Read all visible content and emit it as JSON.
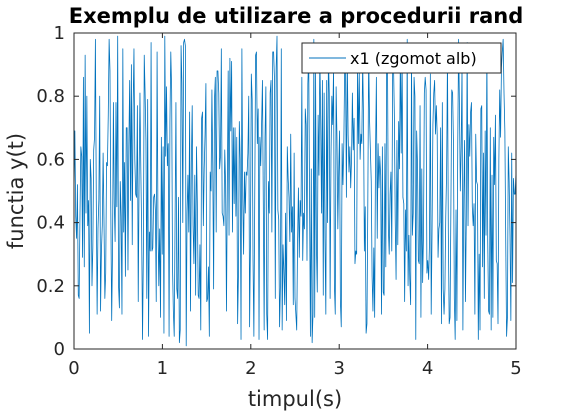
{
  "chart_data": {
    "type": "line",
    "title": "Exemplu de utilizare a procedurii rand",
    "xlabel": "timpul(s)",
    "ylabel": "functia y(t)",
    "xlim": [
      0,
      5
    ],
    "ylim": [
      0,
      1
    ],
    "xticks": [
      "0",
      "1",
      "2",
      "3",
      "4",
      "5"
    ],
    "yticks": [
      "0",
      "0.2",
      "0.4",
      "0.6",
      "0.8",
      "1"
    ],
    "grid": false,
    "legend_position": "top-right",
    "colors": {
      "series": "#0072BD",
      "axes": "#262626",
      "background": "#ffffff"
    },
    "series": [
      {
        "name": "x1 (zgomot alb)",
        "x_start": 0,
        "x_end": 5,
        "values": [
          0.5,
          0.69,
          0.42,
          0.35,
          0.52,
          0.17,
          0.16,
          0.43,
          0.64,
          0.61,
          0.29,
          0.86,
          0.26,
          0.93,
          0.43,
          0.8,
          0.39,
          0.47,
          0.05,
          0.6,
          0.54,
          0.2,
          0.32,
          0.63,
          0.67,
          0.98,
          0.48,
          0.11,
          0.38,
          0.47,
          0.8,
          0.12,
          0.31,
          0.39,
          0.62,
          0.41,
          0.16,
          0.24,
          0.59,
          0.58,
          0.74,
          0.98,
          0.88,
          0.43,
          0.09,
          0.32,
          0.78,
          0.46,
          0.34,
          0.78,
          0.45,
          0.99,
          0.2,
          0.13,
          0.53,
          0.42,
          0.11,
          0.95,
          0.37,
          0.59,
          0.23,
          0.7,
          0.7,
          0.25,
          0.64,
          0.85,
          0.47,
          0.9,
          0.33,
          0.76,
          0.95,
          0.6,
          0.49,
          0.48,
          0.77,
          0.15,
          0.54,
          0.81,
          0.57,
          0.37,
          0.03,
          0.31,
          0.93,
          0.81,
          0.66,
          0.16,
          0.79,
          0.04,
          0.37,
          0.31,
          0.97,
          0.31,
          0.32,
          0.48,
          0.49,
          0.44,
          0.15,
          0.94,
          0.41,
          0.2,
          0.38,
          0.1,
          0.67,
          0.3,
          0.64,
          0.05,
          0.99,
          0.61,
          0.83,
          0.58,
          0.65,
          0.04,
          0.72,
          0.94,
          0.82,
          0.26,
          0.12,
          0.04,
          0.41,
          0.78,
          0.19,
          0.16,
          0.48,
          0.02,
          0.06,
          0.96,
          0.84,
          0.4,
          0.97,
          0.98,
          0.96,
          0.01,
          0.43,
          0.55,
          0.37,
          0.75,
          0.12,
          0.59,
          0.77,
          0.39,
          0.27,
          0.55,
          0.17,
          0.64,
          0.46,
          0.17,
          0.16,
          0.33,
          0.06,
          0.73,
          0.75,
          0.39,
          0.57,
          0.68,
          0.84,
          0.15,
          0.16,
          0.26,
          0.04,
          0.56,
          0.5,
          0.82,
          0.58,
          0.19,
          0.79,
          0.86,
          0.37,
          0.88,
          0.88,
          0.81,
          0.57,
          0.61,
          0.95,
          0.43,
          0.42,
          0.39,
          0.63,
          0.52,
          0.12,
          0.52,
          0.88,
          0.36,
          0.92,
          0.69,
          0.91,
          0.37,
          0.7,
          0.46,
          0.7,
          0.42,
          0.67,
          0.08,
          0.24,
          0.72,
          0.6,
          0.03,
          0.95,
          0.48,
          0.3,
          0.56,
          0.43,
          0.56,
          0.55,
          0.62,
          0.8,
          0.07,
          0.34,
          0.87,
          0.79,
          0.28,
          0.04,
          0.48,
          0.93,
          0.94,
          0.65,
          0.76,
          0.03,
          0.67,
          0.58,
          0.71,
          0.85,
          0.46,
          0.06,
          0.67,
          0.83,
          0.11,
          0.03,
          0.53,
          0.43,
          0.81,
          0.85,
          0.37,
          0.94,
          0.94,
          0.86,
          0.16,
          0.89,
          0.99,
          0.44,
          0.41,
          0.07,
          0.2,
          0.95,
          0.06,
          0.33,
          0.25,
          0.14,
          0.43,
          0.09,
          0.64,
          0.54,
          0.48,
          0.34,
          0.68,
          0.37,
          0.45,
          0.14,
          0.62,
          0.16,
          0.11,
          0.06,
          0.34,
          0.51,
          0.29,
          0.47,
          0.42,
          0.86,
          0.28,
          0.43,
          0.38,
          0.76,
          0.71,
          0.28,
          0.84,
          0.93,
          0.47,
          0.04,
          0.57,
          0.02,
          0.11,
          0.98,
          0.1,
          0.88,
          0.33,
          0.18,
          0.74,
          0.55,
          0.94,
          0.72,
          0.43,
          0.85,
          0.17,
          0.81,
          0.35,
          0.11,
          0.85,
          0.4,
          0.93,
          0.81,
          0.16,
          0.61,
          0.8,
          0.71,
          0.89,
          0.2,
          0.11,
          0.83,
          0.67,
          0.38,
          0.56,
          0.69,
          0.15,
          0.07,
          0.65,
          0.52,
          0.65,
          0.89,
          0.88,
          0.48,
          0.93,
          0.68,
          0.56,
          0.64,
          0.51,
          0.6,
          0.81,
          0.63,
          0.73,
          0.27,
          0.31,
          0.3,
          0.89,
          0.65,
          0.88,
          0.6,
          0.68,
          0.65,
          0.91,
          0.73,
          0.31,
          0.45,
          0.05,
          0.08,
          0.46,
          0.94,
          0.73,
          0.63,
          0.53,
          0.23,
          0.12,
          0.32,
          0.1,
          0.62,
          0.86,
          0.35,
          0.65,
          0.51,
          0.61,
          0.55,
          0.11,
          0.64,
          0.18,
          0.17,
          0.65,
          0.26,
          0.92,
          0.9,
          0.38,
          0.3,
          0.49,
          0.56,
          0.31,
          0.89,
          0.9,
          0.74,
          0.41,
          0.22,
          0.66,
          0.33,
          0.72,
          0.57,
          0.94,
          0.62,
          0.94,
          0.48,
          0.46,
          0.15,
          0.44,
          0.31,
          0.98,
          0.2,
          0.36,
          0.22,
          0.14,
          0.93,
          0.36,
          0.43,
          0.86,
          0.8,
          0.03,
          0.69,
          0.59,
          0.28,
          0.27,
          0.77,
          0.1,
          0.57,
          0.21,
          0.36,
          0.81,
          0.86,
          0.82,
          0.24,
          0.28,
          0.22,
          0.33,
          0.87,
          0.11,
          0.37,
          0.71,
          0.81,
          0.85,
          0.68,
          0.77,
          0.68,
          0.29,
          0.38,
          0.4,
          0.7,
          0.08,
          0.78,
          0.19,
          0.11,
          0.19,
          0.42,
          0.56,
          0.93,
          0.37,
          0.08,
          0.1,
          0.45,
          0.82,
          0.81,
          0.65,
          0.16,
          0.03,
          0.44,
          0.09,
          0.65,
          0.98,
          0.76,
          0.5,
          0.64,
          0.9,
          0.06,
          0.48,
          0.66,
          0.15,
          0.42,
          0.97,
          0.39,
          0.71,
          0.61,
          0.75,
          0.78,
          0.45,
          0.39,
          0.46,
          0.11,
          0.68,
          0.53,
          0.52,
          0.03,
          0.3,
          0.06,
          0.76,
          0.77,
          0.26,
          0.62,
          0.16,
          0.69,
          0.36,
          0.95,
          0.34,
          0.12,
          0.11,
          0.7,
          0.06,
          0.55,
          0.1,
          0.67,
          0.52,
          0.74,
          0.28,
          0.27,
          0.08,
          0.6,
          0.82,
          0.67,
          0.89,
          0.94,
          0.98,
          0.81,
          0.69,
          0.35,
          0.04,
          0.1,
          0.64,
          0.53,
          0.36,
          0.09,
          0.62,
          0.21,
          0.54,
          0.49,
          0.49,
          0.56
        ]
      }
    ]
  }
}
